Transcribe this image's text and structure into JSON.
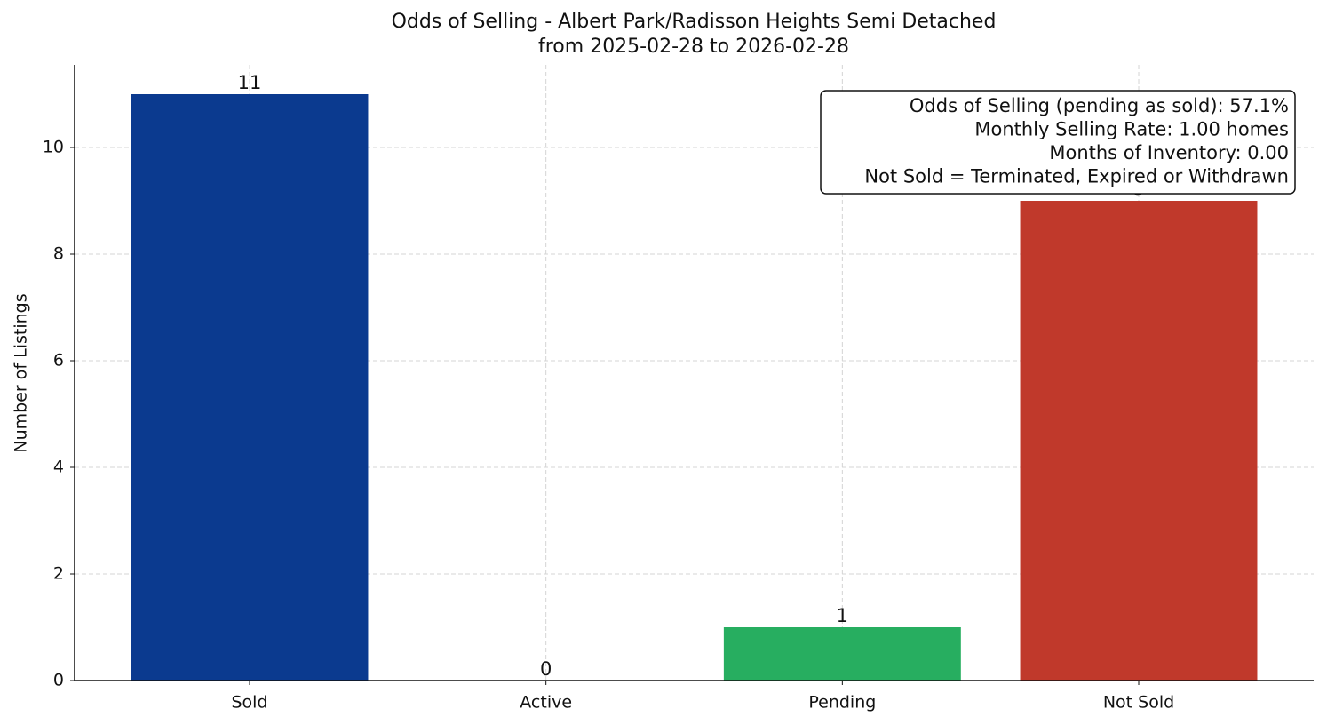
{
  "chart_data": {
    "type": "bar",
    "title": [
      "Odds of Selling - Albert Park/Radisson Heights Semi Detached",
      "from 2025-02-28 to 2026-02-28"
    ],
    "y_label": "Number of Listings",
    "categories": [
      "Sold",
      "Active",
      "Pending",
      "Not Sold"
    ],
    "values": [
      11,
      0,
      1,
      9
    ],
    "colors": [
      "#0b3a8f",
      "#27ae60",
      "#27ae60",
      "#c0392b"
    ],
    "ylim": [
      0,
      11.55
    ],
    "yticks": [
      0,
      2,
      4,
      6,
      8,
      10
    ],
    "grid": true,
    "annotation": [
      "Odds of Selling (pending as sold): 57.1%",
      "Monthly Selling Rate: 1.00 homes",
      "Months of Inventory: 0.00",
      "Not Sold = Terminated, Expired or Withdrawn"
    ]
  }
}
